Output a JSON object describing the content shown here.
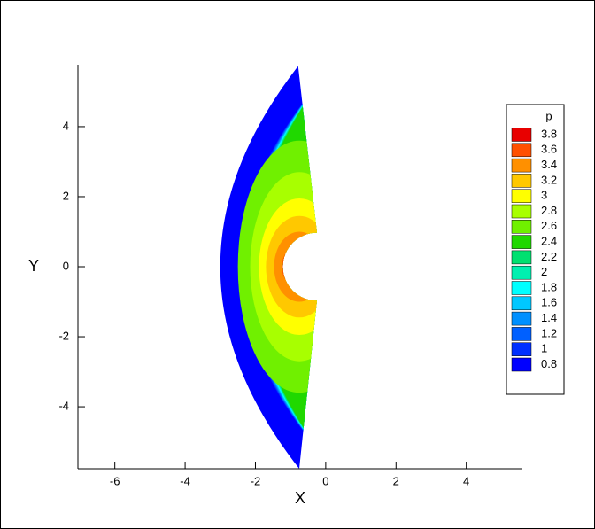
{
  "chart_data": {
    "type": "contour",
    "xlabel": "X",
    "ylabel": "Y",
    "xlim": [
      -7.05,
      5.57
    ],
    "ylim": [
      -5.77,
      5.77
    ],
    "xticks": [
      -6,
      -4,
      -2,
      0,
      2,
      4
    ],
    "yticks": [
      -4,
      -2,
      0,
      2,
      4
    ],
    "legend_title": "p",
    "legend_position": "right",
    "levels": [
      0.8,
      1,
      1.2,
      1.4,
      1.6,
      1.8,
      2,
      2.2,
      2.4,
      2.6,
      2.8,
      3,
      3.2,
      3.4,
      3.6,
      3.8
    ],
    "colors": [
      "#0000ff",
      "#0030ff",
      "#0060ff",
      "#0090ff",
      "#00c8ff",
      "#00ffff",
      "#00f0b0",
      "#00e070",
      "#20d800",
      "#70f000",
      "#a8ff00",
      "#ffff00",
      "#ffc800",
      "#ff9000",
      "#ff5000",
      "#e80000"
    ]
  }
}
